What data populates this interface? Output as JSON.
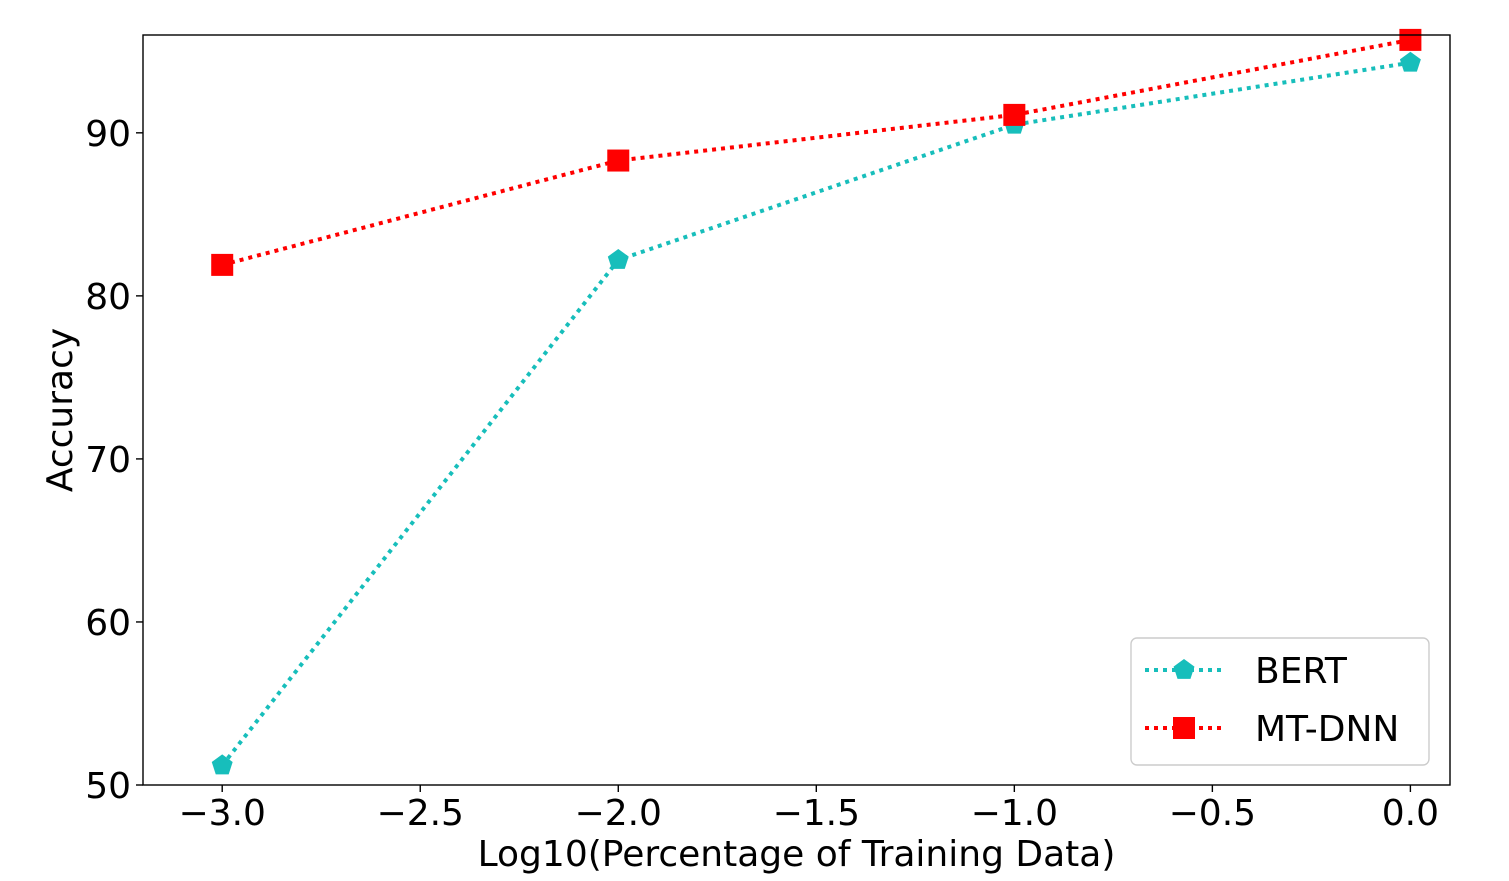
{
  "chart_data": {
    "type": "line",
    "xlabel": "Log10(Percentage of Training Data)",
    "ylabel": "Accuracy",
    "xlim": [
      -3.2,
      0.1
    ],
    "ylim": [
      50,
      96
    ],
    "xticks": [
      -3.0,
      -2.5,
      -2.0,
      -1.5,
      -1.0,
      -0.5,
      0.0
    ],
    "xtick_labels": [
      "−3.0",
      "−2.5",
      "−2.0",
      "−1.5",
      "−1.0",
      "−0.5",
      "0.0"
    ],
    "yticks": [
      50,
      60,
      70,
      80,
      90
    ],
    "ytick_labels": [
      "50",
      "60",
      "70",
      "80",
      "90"
    ],
    "grid": false,
    "legend_position": "bottom-right",
    "series": [
      {
        "name": "BERT",
        "color": "#17bebb",
        "marker": "pentagon",
        "linestyle": "dotted",
        "x": [
          -3.0,
          -2.0,
          -1.0,
          0.0
        ],
        "y": [
          51.2,
          82.2,
          90.5,
          94.3
        ]
      },
      {
        "name": "MT-DNN",
        "color": "#ff0000",
        "marker": "square",
        "linestyle": "dotted",
        "x": [
          -3.0,
          -2.0,
          -1.0,
          0.0
        ],
        "y": [
          81.9,
          88.3,
          91.1,
          95.7
        ]
      }
    ]
  }
}
